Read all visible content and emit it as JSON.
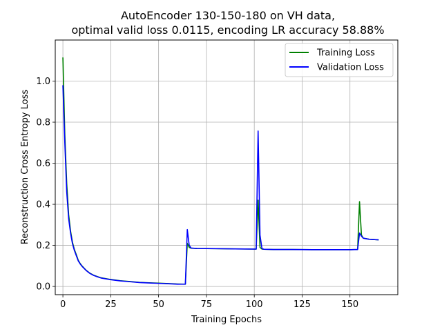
{
  "chart_data": {
    "type": "line",
    "title": [
      "AutoEncoder 130-150-180 on VH data,",
      "optimal valid loss 0.0115, encoding LR accuracy 58.88%"
    ],
    "xlabel": "Training Epochs",
    "ylabel": "Reconstruction Cross Entropy Loss",
    "xlim": [
      -4,
      175
    ],
    "ylim": [
      -0.04,
      1.2
    ],
    "xticks": [
      0,
      25,
      50,
      75,
      100,
      125,
      150
    ],
    "yticks": [
      0.0,
      0.2,
      0.4,
      0.6,
      0.8,
      1.0
    ],
    "ytick_labels": [
      "0.0",
      "0.2",
      "0.4",
      "0.6",
      "0.8",
      "1.0"
    ],
    "grid": true,
    "legend_position": "top-right",
    "series": [
      {
        "name": "Training Loss",
        "color": "#008000",
        "x": [
          0,
          1,
          2,
          3,
          4,
          5,
          6,
          7,
          8,
          9,
          10,
          12,
          14,
          16,
          18,
          20,
          25,
          30,
          35,
          40,
          45,
          50,
          55,
          60,
          64,
          65,
          66,
          67,
          70,
          80,
          90,
          100,
          101,
          102,
          103,
          104,
          105,
          110,
          120,
          130,
          140,
          150,
          154,
          155,
          156,
          157,
          160,
          165
        ],
        "y": [
          1.115,
          0.74,
          0.5,
          0.35,
          0.27,
          0.215,
          0.18,
          0.155,
          0.128,
          0.112,
          0.1,
          0.08,
          0.065,
          0.055,
          0.048,
          0.042,
          0.034,
          0.028,
          0.024,
          0.02,
          0.018,
          0.016,
          0.014,
          0.012,
          0.011,
          0.21,
          0.19,
          0.186,
          0.185,
          0.184,
          0.183,
          0.182,
          0.182,
          0.42,
          0.19,
          0.182,
          0.181,
          0.18,
          0.18,
          0.179,
          0.179,
          0.179,
          0.18,
          0.413,
          0.25,
          0.235,
          0.23,
          0.227
        ]
      },
      {
        "name": "Validation Loss",
        "color": "#0000ff",
        "x": [
          0,
          1,
          2,
          3,
          4,
          5,
          6,
          7,
          8,
          9,
          10,
          12,
          14,
          16,
          18,
          20,
          25,
          30,
          35,
          40,
          45,
          50,
          55,
          60,
          64,
          65,
          66,
          67,
          70,
          80,
          90,
          100,
          101,
          102,
          103,
          104,
          105,
          110,
          120,
          130,
          140,
          150,
          154,
          155,
          156,
          157,
          160,
          165
        ],
        "y": [
          0.98,
          0.7,
          0.46,
          0.33,
          0.26,
          0.208,
          0.175,
          0.15,
          0.125,
          0.11,
          0.098,
          0.079,
          0.064,
          0.054,
          0.047,
          0.041,
          0.033,
          0.027,
          0.023,
          0.019,
          0.017,
          0.015,
          0.013,
          0.011,
          0.0115,
          0.277,
          0.2,
          0.187,
          0.185,
          0.184,
          0.183,
          0.182,
          0.182,
          0.757,
          0.25,
          0.185,
          0.181,
          0.18,
          0.18,
          0.179,
          0.179,
          0.179,
          0.18,
          0.26,
          0.245,
          0.235,
          0.23,
          0.227
        ]
      }
    ]
  }
}
